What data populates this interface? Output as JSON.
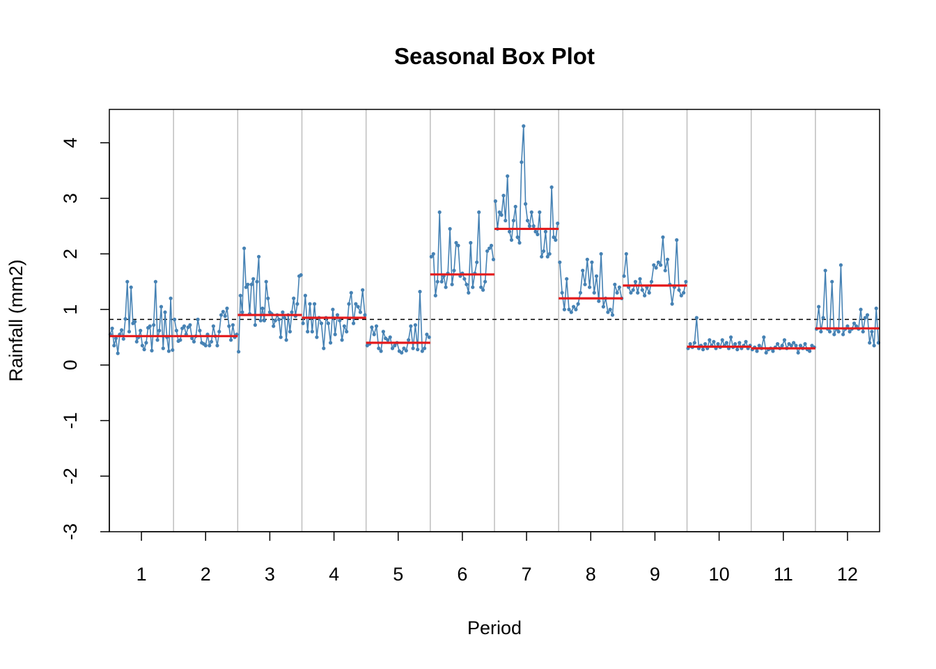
{
  "chart_data": {
    "type": "line",
    "title": "Seasonal Box Plot",
    "xlabel": "Period",
    "ylabel": "Rainfall (mm2)",
    "xlim": [
      0.5,
      12.5
    ],
    "ylim": [
      -3,
      4.6
    ],
    "x_ticks": [
      "1",
      "2",
      "3",
      "4",
      "5",
      "6",
      "7",
      "8",
      "9",
      "10",
      "11",
      "12"
    ],
    "y_ticks": [
      "-3",
      "-2",
      "-1",
      "0",
      "1",
      "2",
      "3",
      "4"
    ],
    "grid": "vertical separators between periods",
    "overall_mean": 0.82,
    "colors": {
      "series": "#4682b4",
      "mean": "#e41a1c",
      "separator": "#bebebe",
      "reference": "#000000"
    },
    "periods": [
      {
        "period": 1,
        "mean": 0.52,
        "values": [
          0.55,
          0.66,
          0.35,
          0.48,
          0.21,
          0.55,
          0.63,
          0.47,
          0.83,
          1.5,
          0.6,
          1.4,
          0.75,
          0.78,
          0.42,
          0.5,
          0.62,
          0.35,
          0.28,
          0.4,
          0.67,
          0.7,
          0.26,
          0.72,
          1.5,
          0.45,
          0.62,
          1.05,
          0.3,
          0.95,
          0.5,
          0.25,
          1.2,
          0.27
        ]
      },
      {
        "period": 2,
        "mean": 0.52,
        "values": [
          0.82,
          0.62,
          0.43,
          0.45,
          0.66,
          0.7,
          0.55,
          0.68,
          0.72,
          0.48,
          0.42,
          0.52,
          0.82,
          0.62,
          0.4,
          0.38,
          0.35,
          0.55,
          0.35,
          0.42,
          0.7,
          0.52,
          0.35,
          0.6,
          0.9,
          0.96,
          0.88,
          1.02,
          0.7,
          0.45,
          0.72,
          0.5,
          0.55
        ]
      },
      {
        "period": 3,
        "mean": 0.9,
        "values": [
          0.24,
          1.25,
          0.95,
          2.1,
          1.4,
          1.45,
          0.92,
          1.45,
          1.55,
          0.72,
          1.5,
          1.95,
          0.8,
          1.02,
          0.8,
          1.5,
          1.2,
          0.95,
          0.92,
          0.7,
          0.8,
          0.9,
          0.82,
          0.5,
          0.95,
          0.85,
          0.45,
          0.9,
          0.6,
          0.95,
          1.2,
          0.88,
          1.1,
          1.6,
          1.62
        ]
      },
      {
        "period": 4,
        "mean": 0.85,
        "values": [
          0.75,
          1.25,
          0.6,
          1.1,
          0.6,
          1.1,
          0.5,
          0.85,
          0.75,
          0.3,
          0.85,
          0.75,
          0.4,
          1.0,
          0.55,
          0.9,
          0.8,
          0.45,
          0.7,
          0.6,
          1.1,
          1.3,
          0.75,
          1.1,
          1.05,
          0.95,
          1.35,
          0.9
        ]
      },
      {
        "period": 5,
        "mean": 0.4,
        "values": [
          0.35,
          0.38,
          0.68,
          0.55,
          0.7,
          0.3,
          0.25,
          0.6,
          0.48,
          0.45,
          0.5,
          0.3,
          0.35,
          0.4,
          0.25,
          0.22,
          0.3,
          0.26,
          0.45,
          0.7,
          0.3,
          0.72,
          0.28,
          1.32,
          0.25,
          0.3,
          0.55,
          0.5
        ]
      },
      {
        "period": 6,
        "mean": 1.63,
        "values": [
          1.95,
          2.0,
          1.25,
          1.5,
          2.75,
          1.5,
          1.6,
          1.4,
          1.65,
          2.45,
          1.45,
          1.7,
          2.2,
          2.15,
          1.6,
          1.65,
          1.55,
          1.45,
          1.3,
          2.2,
          1.4,
          1.65,
          1.85,
          2.75,
          1.4,
          1.35,
          1.5,
          2.05,
          2.1,
          2.15,
          1.9
        ]
      },
      {
        "period": 7,
        "mean": 2.45,
        "values": [
          2.95,
          2.45,
          2.75,
          2.7,
          3.05,
          2.6,
          3.4,
          2.4,
          2.25,
          2.6,
          2.85,
          2.3,
          2.2,
          3.65,
          4.3,
          2.9,
          2.6,
          2.5,
          2.75,
          2.5,
          2.4,
          2.35,
          2.75,
          1.95,
          2.05,
          2.4,
          1.95,
          2.0,
          3.2,
          2.3,
          2.25,
          2.55
        ]
      },
      {
        "period": 8,
        "mean": 1.2,
        "values": [
          1.85,
          1.3,
          1.0,
          1.55,
          1.0,
          0.95,
          1.05,
          1.0,
          1.1,
          1.3,
          1.7,
          1.45,
          1.9,
          1.4,
          1.85,
          1.3,
          1.6,
          1.15,
          2.0,
          1.05,
          1.2,
          0.95,
          1.0,
          0.9,
          1.45,
          1.3,
          1.4,
          1.2
        ]
      },
      {
        "period": 9,
        "mean": 1.43,
        "values": [
          1.6,
          2.0,
          1.4,
          1.3,
          1.35,
          1.5,
          1.3,
          1.55,
          1.35,
          1.25,
          1.4,
          1.3,
          1.5,
          1.8,
          1.75,
          1.85,
          1.8,
          2.3,
          1.7,
          1.9,
          1.45,
          1.1,
          1.4,
          2.25,
          1.35,
          1.25,
          1.3,
          1.5
        ]
      },
      {
        "period": 10,
        "mean": 0.33,
        "values": [
          0.3,
          0.38,
          0.32,
          0.4,
          0.85,
          0.3,
          0.35,
          0.28,
          0.38,
          0.3,
          0.45,
          0.35,
          0.42,
          0.3,
          0.38,
          0.32,
          0.45,
          0.35,
          0.4,
          0.3,
          0.5,
          0.32,
          0.38,
          0.28,
          0.4,
          0.3,
          0.35,
          0.42,
          0.3,
          0.35
        ]
      },
      {
        "period": 11,
        "mean": 0.3,
        "values": [
          0.28,
          0.32,
          0.25,
          0.35,
          0.3,
          0.5,
          0.22,
          0.28,
          0.3,
          0.25,
          0.32,
          0.38,
          0.3,
          0.35,
          0.45,
          0.3,
          0.38,
          0.35,
          0.4,
          0.35,
          0.22,
          0.35,
          0.3,
          0.38,
          0.28,
          0.25,
          0.35,
          0.32
        ]
      },
      {
        "period": 12,
        "mean": 0.66,
        "values": [
          0.65,
          1.05,
          0.6,
          0.85,
          1.7,
          0.65,
          0.6,
          1.5,
          0.55,
          0.65,
          0.6,
          1.8,
          0.55,
          0.65,
          0.7,
          0.6,
          0.65,
          0.75,
          0.7,
          0.65,
          1.0,
          0.6,
          0.85,
          0.9,
          0.4,
          0.6,
          0.35,
          1.02,
          0.4
        ]
      }
    ]
  }
}
